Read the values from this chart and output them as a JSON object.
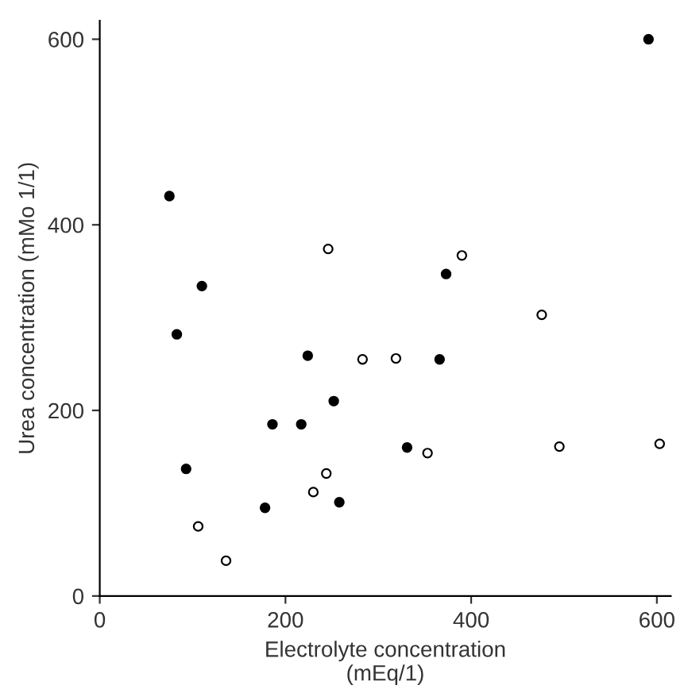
{
  "chart_data": {
    "type": "scatter",
    "xlabel": "Electrolyte concentration\n(mEq/1)",
    "ylabel": "Urea concentration (mMo 1/1)",
    "xlim": [
      0,
      615
    ],
    "ylim": [
      0,
      620
    ],
    "xticks": [
      0,
      200,
      400,
      600
    ],
    "yticks": [
      0,
      200,
      400,
      600
    ],
    "grid": false,
    "legend": false,
    "marker": "circle",
    "series": [
      {
        "color": "#000000",
        "x": [
          591,
          75,
          110,
          373,
          83,
          224,
          366,
          252,
          186,
          217,
          331,
          93,
          258,
          178
        ],
        "values": [
          600,
          431,
          334,
          347,
          282,
          259,
          255,
          210,
          185,
          185,
          160,
          137,
          101,
          95
        ]
      },
      {
        "color": "#ffffff",
        "x": [
          246,
          390,
          476,
          283,
          319,
          353,
          495,
          603,
          244,
          230,
          106,
          136
        ],
        "values": [
          374,
          367,
          303,
          255,
          256,
          154,
          161,
          164,
          132,
          112,
          75,
          38
        ]
      }
    ]
  }
}
